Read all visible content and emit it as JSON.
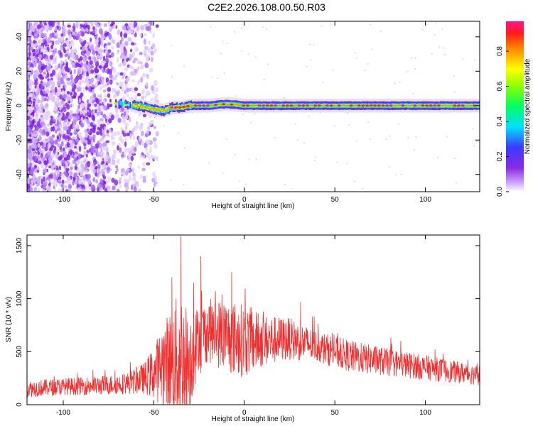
{
  "title": "C2E2.2026.108.00.50.R03",
  "chart_data": [
    {
      "type": "heatmap",
      "title": "",
      "xlabel": "Height of straight line (km)",
      "ylabel": "Frequency (Hz)",
      "xlim": [
        -120,
        130
      ],
      "ylim": [
        -50,
        49
      ],
      "x_ticks": [
        -100,
        -50,
        0,
        50,
        100
      ],
      "y_ticks": [
        -40,
        -20,
        0,
        20,
        40
      ],
      "colorbar": {
        "label": "Normalized spectral amplitude",
        "range": [
          0,
          0.97
        ],
        "ticks": [
          0.0,
          0.2,
          0.4,
          0.6,
          0.8
        ]
      },
      "ridge_points": [
        {
          "x": -76,
          "y": 2
        },
        {
          "x": -60,
          "y": 0
        },
        {
          "x": -50,
          "y": -2
        },
        {
          "x": -45,
          "y": -3
        },
        {
          "x": -40,
          "y": -1
        },
        {
          "x": -35,
          "y": -1
        },
        {
          "x": -30,
          "y": 0
        },
        {
          "x": -20,
          "y": 0
        },
        {
          "x": -10,
          "y": 1
        },
        {
          "x": 0,
          "y": 0
        },
        {
          "x": 50,
          "y": 0
        },
        {
          "x": 90,
          "y": 0
        },
        {
          "x": 130,
          "y": 0
        }
      ]
    },
    {
      "type": "line",
      "title": "",
      "xlabel": "Height of straight line (km)",
      "ylabel": "SNR (10 * v/v)",
      "xlim": [
        -120,
        130
      ],
      "ylim": [
        0,
        1600
      ],
      "x_ticks": [
        -100,
        -50,
        0,
        50,
        100
      ],
      "y_ticks": [
        0,
        500,
        1000,
        1500
      ],
      "color": "#f03030",
      "envelope": {
        "x": [
          -120,
          -100,
          -80,
          -65,
          -55,
          -50,
          -45,
          -40,
          -35,
          -30,
          -25,
          -20,
          -10,
          0,
          10,
          25,
          40,
          60,
          80,
          100,
          120,
          130
        ],
        "mean": [
          150,
          170,
          180,
          200,
          250,
          300,
          380,
          420,
          420,
          400,
          650,
          700,
          650,
          600,
          600,
          620,
          550,
          450,
          400,
          350,
          300,
          280
        ],
        "spread": [
          80,
          80,
          90,
          100,
          150,
          250,
          400,
          500,
          700,
          450,
          300,
          300,
          350,
          350,
          250,
          200,
          150,
          150,
          130,
          120,
          100,
          100
        ]
      },
      "peaks": [
        {
          "x": -35,
          "y": 1590
        },
        {
          "x": -24,
          "y": 1400
        },
        {
          "x": -7,
          "y": 1250
        },
        {
          "x": -40,
          "y": 1200
        },
        {
          "x": -28,
          "y": 1150
        }
      ]
    }
  ]
}
